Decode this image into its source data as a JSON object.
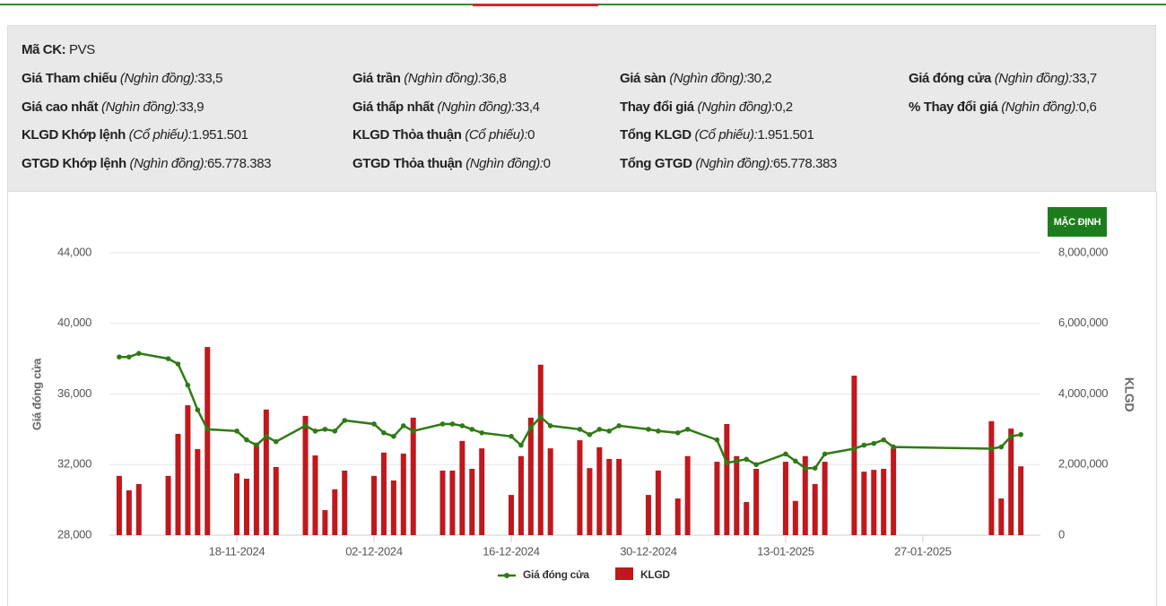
{
  "info": {
    "symbol": {
      "label": "Mã CK:",
      "value": "PVS"
    },
    "rows": [
      [
        {
          "label": "Giá Tham chiếu",
          "unit": "(Nghìn đồng):",
          "value": "33,5"
        },
        {
          "label": "Giá trần",
          "unit": "(Nghìn đồng):",
          "value": "36,8"
        },
        {
          "label": "Giá sàn",
          "unit": "(Nghìn đồng):",
          "value": "30,2"
        },
        {
          "label": "Giá đóng cửa",
          "unit": "(Nghìn đồng):",
          "value": "33,7"
        }
      ],
      [
        {
          "label": "Giá cao nhất",
          "unit": "(Nghìn đồng):",
          "value": "33,9"
        },
        {
          "label": "Giá thấp nhất",
          "unit": "(Nghìn đồng):",
          "value": "33,4"
        },
        {
          "label": "Thay đổi giá",
          "unit": "(Nghìn đồng):",
          "value": "0,2"
        },
        {
          "label": "% Thay đổi giá",
          "unit": "(Nghìn đồng):",
          "value": "0,6"
        }
      ],
      [
        {
          "label": "KLGD Khớp lệnh",
          "unit": "(Cổ phiếu):",
          "value": "1.951.501"
        },
        {
          "label": "KLGD Thỏa thuận",
          "unit": "(Cổ phiếu):",
          "value": "0"
        },
        {
          "label": "Tổng KLGD",
          "unit": "(Cổ phiếu):",
          "value": "1.951.501"
        }
      ],
      [
        {
          "label": "GTGD Khớp lệnh",
          "unit": "(Nghìn đồng):",
          "value": "65.778.383"
        },
        {
          "label": "GTGD Thỏa thuận",
          "unit": "(Nghìn đồng):",
          "value": "0"
        },
        {
          "label": "Tổng GTGD",
          "unit": "(Nghìn đồng):",
          "value": "65.778.383"
        }
      ]
    ]
  },
  "button": "MẶC ĐỊNH",
  "chart_data": {
    "type": "combo",
    "y_label": "Giá đóng cửa",
    "y2_label": "KLGD",
    "x": [
      "06-11-2024",
      "07-11-2024",
      "08-11-2024",
      "11-11-2024",
      "12-11-2024",
      "13-11-2024",
      "14-11-2024",
      "15-11-2024",
      "18-11-2024",
      "19-11-2024",
      "20-11-2024",
      "21-11-2024",
      "22-11-2024",
      "25-11-2024",
      "26-11-2024",
      "27-11-2024",
      "28-11-2024",
      "29-11-2024",
      "02-12-2024",
      "03-12-2024",
      "04-12-2024",
      "05-12-2024",
      "06-12-2024",
      "09-12-2024",
      "10-12-2024",
      "11-12-2024",
      "12-12-2024",
      "13-12-2024",
      "16-12-2024",
      "17-12-2024",
      "18-12-2024",
      "19-12-2024",
      "20-12-2024",
      "23-12-2024",
      "24-12-2024",
      "25-12-2024",
      "26-12-2024",
      "27-12-2024",
      "30-12-2024",
      "31-12-2024",
      "02-01-2025",
      "03-01-2025",
      "06-01-2025",
      "07-01-2025",
      "08-01-2025",
      "09-01-2025",
      "10-01-2025",
      "13-01-2025",
      "14-01-2025",
      "15-01-2025",
      "16-01-2025",
      "17-01-2025",
      "20-01-2025",
      "21-01-2025",
      "22-01-2025",
      "23-01-2025",
      "24-01-2025",
      "03-02-2025",
      "04-02-2025",
      "05-02-2025",
      "06-02-2025"
    ],
    "series": [
      {
        "name": "Giá đóng cửa",
        "type": "line",
        "color": "#2f7a14",
        "values": [
          38100,
          38100,
          38300,
          38000,
          37700,
          36500,
          35100,
          34000,
          33900,
          33400,
          33100,
          33600,
          33300,
          34200,
          33900,
          34000,
          33900,
          34500,
          34300,
          33800,
          33600,
          34200,
          33900,
          34300,
          34300,
          34200,
          34000,
          33800,
          33600,
          33100,
          34100,
          34700,
          34200,
          34000,
          33700,
          34000,
          33900,
          34200,
          34000,
          33900,
          33800,
          34000,
          33400,
          32100,
          32200,
          32300,
          32000,
          32600,
          32200,
          31800,
          31800,
          32600,
          32900,
          33100,
          33200,
          33400,
          33000,
          32900,
          33000,
          33600,
          33700
        ]
      },
      {
        "name": "KLGD",
        "type": "bar",
        "axis": "y2",
        "color": "#c0181c",
        "values": [
          1680000,
          1270000,
          1450000,
          1680000,
          2870000,
          3680000,
          2440000,
          5330000,
          1750000,
          1600000,
          2620000,
          3560000,
          1930000,
          3380000,
          2260000,
          710000,
          1300000,
          1830000,
          1680000,
          2340000,
          1550000,
          2310000,
          3330000,
          1830000,
          1830000,
          2670000,
          1880000,
          2460000,
          1140000,
          2240000,
          3330000,
          4830000,
          2460000,
          2690000,
          1900000,
          2490000,
          2160000,
          2160000,
          1140000,
          1830000,
          1040000,
          2240000,
          2080000,
          3150000,
          2240000,
          940000,
          1880000,
          2080000,
          970000,
          2240000,
          1450000,
          2080000,
          4520000,
          1800000,
          1850000,
          1880000,
          2460000,
          3230000,
          1040000,
          3020000,
          1950000
        ]
      }
    ],
    "xlim": [
      "05-11-2024",
      "08-02-2025"
    ],
    "xticks": [
      "18-11-2024",
      "02-12-2024",
      "16-12-2024",
      "30-12-2024",
      "13-01-2025",
      "27-01-2025"
    ],
    "ylim": [
      28000,
      44000
    ],
    "yticks": [
      {
        "value": 28000,
        "label": "28,000"
      },
      {
        "value": 32000,
        "label": "32,000"
      },
      {
        "value": 36000,
        "label": "36,000"
      },
      {
        "value": 40000,
        "label": "40,000"
      },
      {
        "value": 44000,
        "label": "44,000"
      }
    ],
    "y2lim": [
      0,
      8000000
    ],
    "y2ticks": [
      0,
      {
        "value": 2000000,
        "label": "2,000,000"
      },
      {
        "value": 4000000,
        "label": "4,000,000"
      },
      {
        "value": 6000000,
        "label": "6,000,000"
      },
      {
        "value": 8000000,
        "label": "8,000,000"
      }
    ],
    "grid": true,
    "legend": "bottom"
  }
}
